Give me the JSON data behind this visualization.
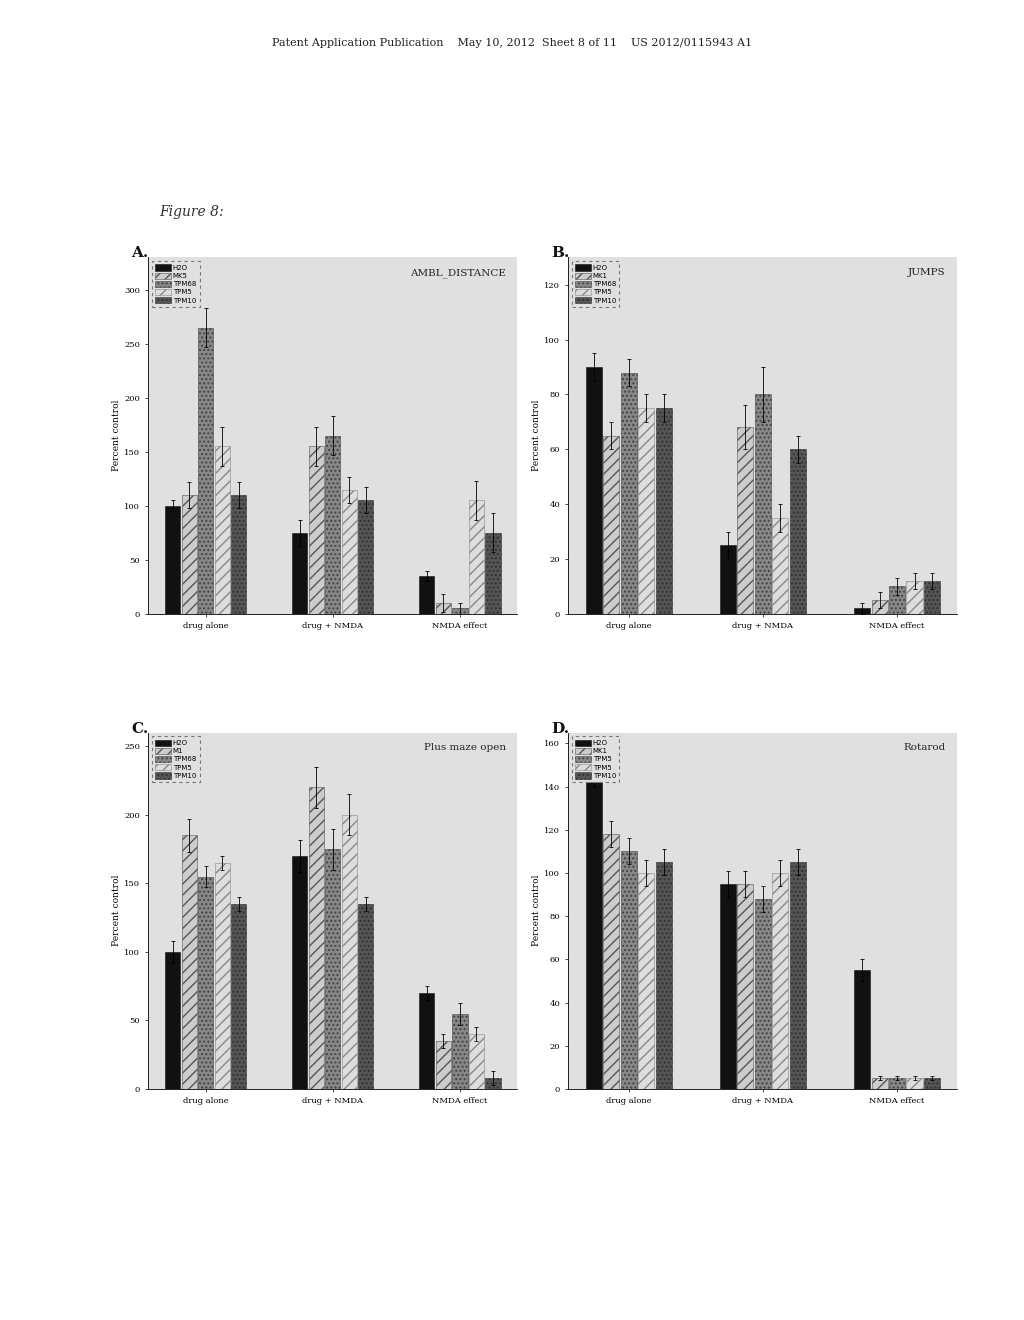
{
  "figure_label": "Figure 8:",
  "page_header": "Patent Application Publication    May 10, 2012  Sheet 8 of 11    US 2012/0115943 A1",
  "background_color": "#ffffff",
  "plot_bg": "#e8e8e8",
  "subplots": [
    {
      "label": "A.",
      "title": "AMBL_DISTANCE",
      "ylabel": "Percent control",
      "ylim": [
        0,
        330
      ],
      "yticks": [
        0,
        50,
        100,
        150,
        200,
        250,
        300
      ],
      "xtick_labels": [
        "drug alone",
        "drug + NMDA",
        "NMDA effect"
      ],
      "legend_labels": [
        "H2O",
        "MK5",
        "TPM68",
        "TPM5",
        "TPM10"
      ],
      "groups": [
        [
          100,
          110,
          265,
          155,
          110
        ],
        [
          75,
          155,
          165,
          115,
          105
        ],
        [
          35,
          10,
          5,
          105,
          75
        ]
      ],
      "errors": [
        [
          5,
          12,
          18,
          18,
          12
        ],
        [
          12,
          18,
          18,
          12,
          12
        ],
        [
          5,
          8,
          5,
          18,
          18
        ]
      ]
    },
    {
      "label": "B.",
      "title": "JUMPS",
      "ylabel": "Percent control",
      "ylim": [
        0,
        130
      ],
      "yticks": [
        0,
        20,
        40,
        60,
        80,
        100,
        120
      ],
      "xtick_labels": [
        "drug alone",
        "drug + NMDA",
        "NMDA effect"
      ],
      "legend_labels": [
        "H2O",
        "MK1",
        "TPM68",
        "TPM5",
        "TPM10"
      ],
      "groups": [
        [
          90,
          65,
          88,
          75,
          75
        ],
        [
          25,
          68,
          80,
          35,
          60
        ],
        [
          2,
          5,
          10,
          12,
          12
        ]
      ],
      "errors": [
        [
          5,
          5,
          5,
          5,
          5
        ],
        [
          5,
          8,
          10,
          5,
          5
        ],
        [
          2,
          3,
          3,
          3,
          3
        ]
      ]
    },
    {
      "label": "C.",
      "title": "Plus maze open",
      "ylabel": "Percent control",
      "ylim": [
        0,
        260
      ],
      "yticks": [
        0,
        50,
        100,
        150,
        200,
        250
      ],
      "xtick_labels": [
        "drug alone",
        "drug + NMDA",
        "NMDA effect"
      ],
      "legend_labels": [
        "H2O",
        "M1",
        "TPM68",
        "TPM5",
        "TPM10"
      ],
      "groups": [
        [
          100,
          185,
          155,
          165,
          135
        ],
        [
          170,
          220,
          175,
          200,
          135
        ],
        [
          70,
          35,
          55,
          40,
          8
        ]
      ],
      "errors": [
        [
          8,
          12,
          8,
          5,
          5
        ],
        [
          12,
          15,
          15,
          15,
          5
        ],
        [
          5,
          5,
          8,
          5,
          5
        ]
      ]
    },
    {
      "label": "D.",
      "title": "Rotarod",
      "ylabel": "Percent control",
      "ylim": [
        0,
        165
      ],
      "yticks": [
        0,
        20,
        40,
        60,
        80,
        100,
        120,
        140,
        160
      ],
      "xtick_labels": [
        "drug alone",
        "drug + NMDA",
        "NMDA effect"
      ],
      "legend_labels": [
        "H2O",
        "MK1",
        "TPM5",
        "TPM5",
        "TPM10"
      ],
      "groups": [
        [
          148,
          118,
          110,
          100,
          105
        ],
        [
          95,
          95,
          88,
          100,
          105
        ],
        [
          55,
          5,
          5,
          5,
          5
        ]
      ],
      "errors": [
        [
          8,
          6,
          6,
          6,
          6
        ],
        [
          6,
          6,
          6,
          6,
          6
        ],
        [
          5,
          1,
          1,
          1,
          1
        ]
      ]
    }
  ]
}
